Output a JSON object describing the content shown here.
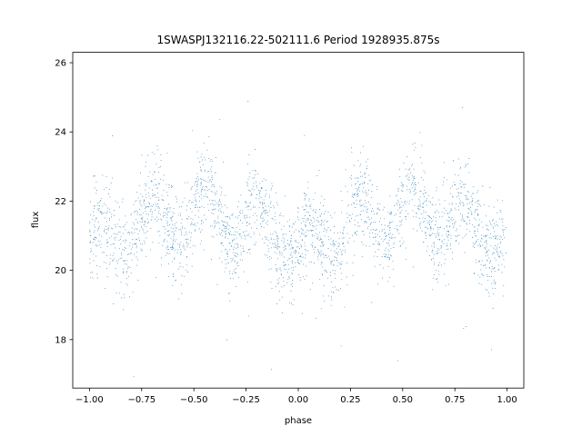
{
  "chart_data": {
    "type": "scatter",
    "title": "1SWASPJ132116.22-502111.6 Period 1928935.875s",
    "xlabel": "phase",
    "ylabel": "flux",
    "xlim": [
      -1.08,
      1.08
    ],
    "ylim": [
      16.6,
      26.3
    ],
    "xticks": [
      -1.0,
      -0.75,
      -0.5,
      -0.25,
      0.0,
      0.25,
      0.5,
      0.75,
      1.0
    ],
    "xtick_labels": [
      "−1.00",
      "−0.75",
      "−0.50",
      "−0.25",
      "0.00",
      "0.25",
      "0.50",
      "0.75",
      "1.00"
    ],
    "yticks": [
      18,
      20,
      22,
      24,
      26
    ],
    "ytick_labels": [
      "18",
      "20",
      "22",
      "24",
      "26"
    ],
    "grid": false,
    "marker_color": "#1f77b4",
    "series": [
      {
        "name": "",
        "profile": {
          "phase": [
            -1.0,
            -0.9,
            -0.8,
            -0.75,
            -0.7,
            -0.6,
            -0.5,
            -0.45,
            -0.4,
            -0.3,
            -0.2,
            -0.1,
            0.0,
            0.1,
            0.2,
            0.25,
            0.3,
            0.4,
            0.5,
            0.55,
            0.6,
            0.7,
            0.8,
            0.9,
            1.0
          ],
          "flux_mean": [
            21.0,
            20.8,
            21.1,
            21.5,
            21.6,
            21.3,
            21.7,
            21.9,
            21.6,
            21.3,
            21.4,
            21.0,
            20.6,
            20.7,
            21.0,
            21.4,
            21.7,
            21.4,
            21.6,
            21.9,
            21.6,
            21.4,
            21.4,
            21.1,
            20.9
          ],
          "flux_spread": [
            1.0,
            1.1,
            1.0,
            0.9,
            1.0,
            0.9,
            0.8,
            0.8,
            0.8,
            0.9,
            0.8,
            0.9,
            0.8,
            0.9,
            1.0,
            1.0,
            0.9,
            0.8,
            0.8,
            0.9,
            0.8,
            0.9,
            0.8,
            1.0,
            1.0
          ]
        }
      }
    ]
  }
}
